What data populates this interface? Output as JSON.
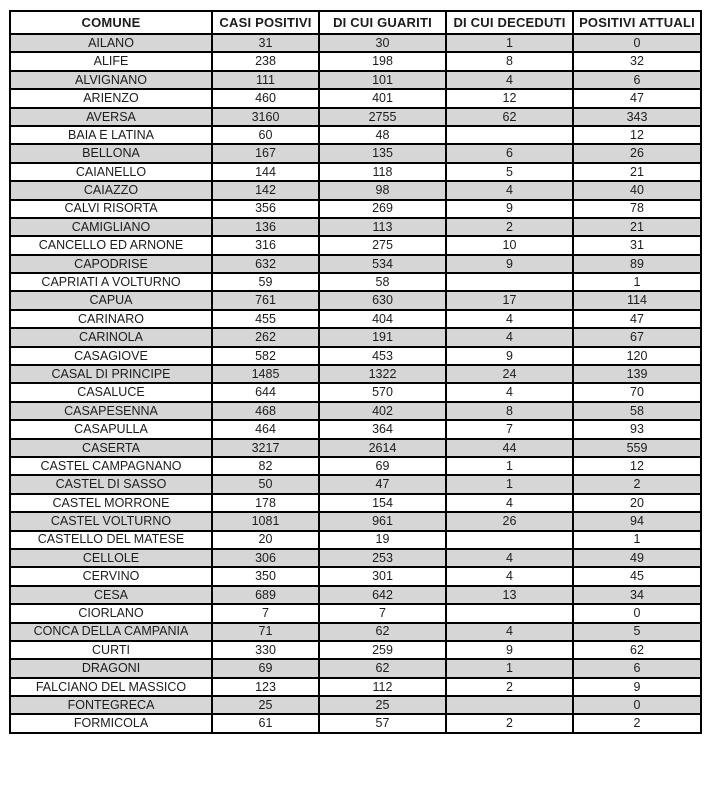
{
  "table": {
    "columns": [
      "COMUNE",
      "CASI POSITIVI",
      "DI CUI GUARITI",
      "DI CUI DECEDUTI",
      "POSITIVI ATTUALI"
    ],
    "rows": [
      [
        "AILANO",
        "31",
        "30",
        "1",
        "0"
      ],
      [
        "ALIFE",
        "238",
        "198",
        "8",
        "32"
      ],
      [
        "ALVIGNANO",
        "111",
        "101",
        "4",
        "6"
      ],
      [
        "ARIENZO",
        "460",
        "401",
        "12",
        "47"
      ],
      [
        "AVERSA",
        "3160",
        "2755",
        "62",
        "343"
      ],
      [
        "BAIA E LATINA",
        "60",
        "48",
        "",
        "12"
      ],
      [
        "BELLONA",
        "167",
        "135",
        "6",
        "26"
      ],
      [
        "CAIANELLO",
        "144",
        "118",
        "5",
        "21"
      ],
      [
        "CAIAZZO",
        "142",
        "98",
        "4",
        "40"
      ],
      [
        "CALVI RISORTA",
        "356",
        "269",
        "9",
        "78"
      ],
      [
        "CAMIGLIANO",
        "136",
        "113",
        "2",
        "21"
      ],
      [
        "CANCELLO ED ARNONE",
        "316",
        "275",
        "10",
        "31"
      ],
      [
        "CAPODRISE",
        "632",
        "534",
        "9",
        "89"
      ],
      [
        "CAPRIATI A VOLTURNO",
        "59",
        "58",
        "",
        "1"
      ],
      [
        "CAPUA",
        "761",
        "630",
        "17",
        "114"
      ],
      [
        "CARINARO",
        "455",
        "404",
        "4",
        "47"
      ],
      [
        "CARINOLA",
        "262",
        "191",
        "4",
        "67"
      ],
      [
        "CASAGIOVE",
        "582",
        "453",
        "9",
        "120"
      ],
      [
        "CASAL DI PRINCIPE",
        "1485",
        "1322",
        "24",
        "139"
      ],
      [
        "CASALUCE",
        "644",
        "570",
        "4",
        "70"
      ],
      [
        "CASAPESENNA",
        "468",
        "402",
        "8",
        "58"
      ],
      [
        "CASAPULLA",
        "464",
        "364",
        "7",
        "93"
      ],
      [
        "CASERTA",
        "3217",
        "2614",
        "44",
        "559"
      ],
      [
        "CASTEL CAMPAGNANO",
        "82",
        "69",
        "1",
        "12"
      ],
      [
        "CASTEL DI SASSO",
        "50",
        "47",
        "1",
        "2"
      ],
      [
        "CASTEL MORRONE",
        "178",
        "154",
        "4",
        "20"
      ],
      [
        "CASTEL VOLTURNO",
        "1081",
        "961",
        "26",
        "94"
      ],
      [
        "CASTELLO DEL MATESE",
        "20",
        "19",
        "",
        "1"
      ],
      [
        "CELLOLE",
        "306",
        "253",
        "4",
        "49"
      ],
      [
        "CERVINO",
        "350",
        "301",
        "4",
        "45"
      ],
      [
        "CESA",
        "689",
        "642",
        "13",
        "34"
      ],
      [
        "CIORLANO",
        "7",
        "7",
        "",
        "0"
      ],
      [
        "CONCA DELLA CAMPANIA",
        "71",
        "62",
        "4",
        "5"
      ],
      [
        "CURTI",
        "330",
        "259",
        "9",
        "62"
      ],
      [
        "DRAGONI",
        "69",
        "62",
        "1",
        "6"
      ],
      [
        "FALCIANO DEL MASSICO",
        "123",
        "112",
        "2",
        "9"
      ],
      [
        "FONTEGRECA",
        "25",
        "25",
        "",
        "0"
      ],
      [
        "FORMICOLA",
        "61",
        "57",
        "2",
        "2"
      ]
    ]
  },
  "colors": {
    "row_shade": "#d6d6d6",
    "border": "#000000",
    "text": "#1c1c1c",
    "background": "#ffffff"
  }
}
